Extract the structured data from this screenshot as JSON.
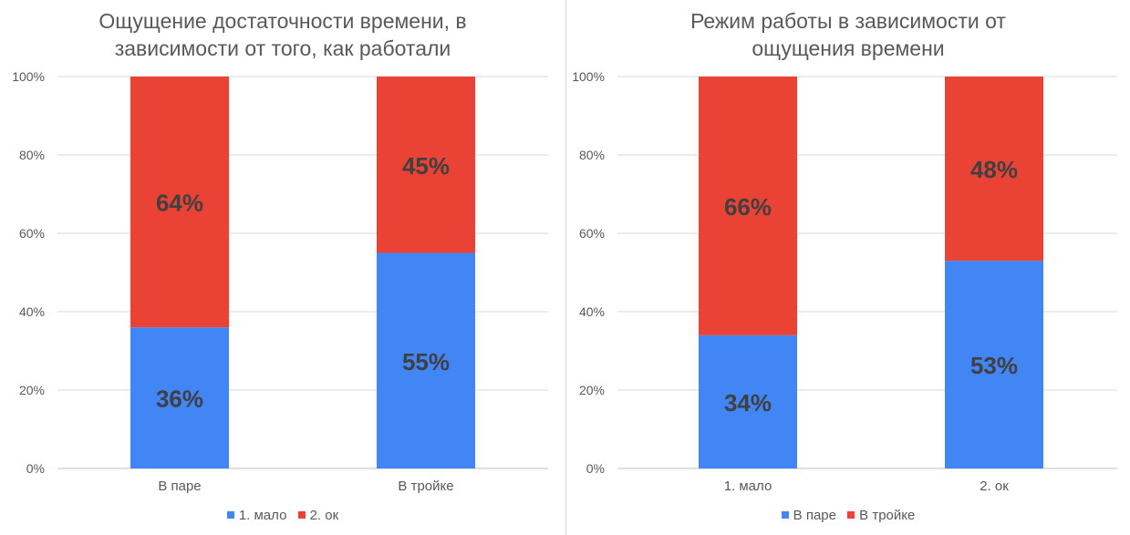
{
  "chart_data": [
    {
      "type": "bar",
      "stacked": true,
      "title_lines": [
        "Ощущение достаточности времени, в",
        "зависимости от того, как работали"
      ],
      "categories": [
        "В паре",
        "В тройке"
      ],
      "series": [
        {
          "name": "1. мало",
          "color": "#4285f4",
          "values": [
            36,
            55
          ],
          "labels": [
            "36%",
            "55%"
          ]
        },
        {
          "name": "2. ок",
          "color": "#ea4335",
          "values": [
            64,
            45
          ],
          "labels": [
            "64%",
            "45%"
          ]
        }
      ],
      "ylim": [
        0,
        100
      ],
      "yticks": [
        "0%",
        "20%",
        "40%",
        "60%",
        "80%",
        "100%"
      ],
      "grid": true,
      "legend": "bottom"
    },
    {
      "type": "bar",
      "stacked": true,
      "title_lines": [
        "Режим работы в зависимости от",
        "ощущения времени"
      ],
      "categories": [
        "1. мало",
        "2. ок"
      ],
      "series": [
        {
          "name": "В паре",
          "color": "#4285f4",
          "values": [
            34,
            53
          ],
          "labels": [
            "34%",
            "53%"
          ]
        },
        {
          "name": "В тройке",
          "color": "#ea4335",
          "values": [
            66,
            48
          ],
          "labels": [
            "66%",
            "48%"
          ]
        }
      ],
      "ylim": [
        0,
        100
      ],
      "yticks": [
        "0%",
        "20%",
        "40%",
        "60%",
        "80%",
        "100%"
      ],
      "grid": true,
      "legend": "bottom"
    }
  ]
}
